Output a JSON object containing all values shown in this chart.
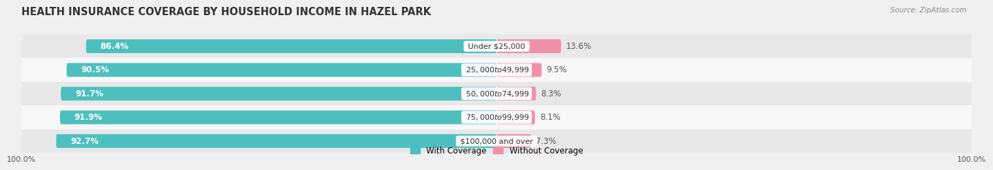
{
  "title": "HEALTH INSURANCE COVERAGE BY HOUSEHOLD INCOME IN HAZEL PARK",
  "source": "Source: ZipAtlas.com",
  "categories": [
    "Under $25,000",
    "$25,000 to $49,999",
    "$50,000 to $74,999",
    "$75,000 to $99,999",
    "$100,000 and over"
  ],
  "with_coverage": [
    86.4,
    90.5,
    91.7,
    91.9,
    92.7
  ],
  "without_coverage": [
    13.6,
    9.5,
    8.3,
    8.1,
    7.3
  ],
  "color_with": "#4dbfbf",
  "color_without": "#f090a8",
  "color_label_with": "#ffffff",
  "color_label_without": "#555555",
  "bar_height": 0.58,
  "background_color": "#f0f0f0",
  "row_colors": [
    "#e8e8e8",
    "#f8f8f8"
  ],
  "title_fontsize": 10.5,
  "label_fontsize": 8.5,
  "legend_fontsize": 8.5,
  "x_left_label": "100.0%",
  "x_right_label": "100.0%"
}
